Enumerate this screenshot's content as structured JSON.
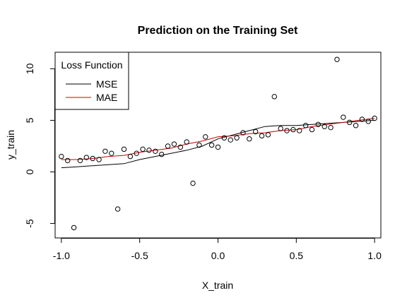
{
  "chart_data": {
    "type": "scatter",
    "title": "Prediction on the Training Set",
    "xlabel": "X_train",
    "ylabel": "y_train",
    "xlim": [
      -1.04,
      1.04
    ],
    "ylim": [
      -6.4,
      11.6
    ],
    "xticks": [
      -1.0,
      -0.5,
      0.0,
      0.5,
      1.0
    ],
    "xtick_labels": [
      "-1.0",
      "-0.5",
      "0.0",
      "0.5",
      "1.0"
    ],
    "yticks": [
      -5,
      0,
      5,
      10
    ],
    "ytick_labels": [
      "-5",
      "0",
      "5",
      "10"
    ],
    "grid": false,
    "legend": {
      "title": "Loss Function",
      "placement": "top-left",
      "entries": [
        {
          "label": "MSE",
          "color": "#000000"
        },
        {
          "label": "MAE",
          "color": "#cc0000"
        }
      ]
    },
    "points": {
      "x": [
        -1.0,
        -0.96,
        -0.92,
        -0.88,
        -0.84,
        -0.8,
        -0.76,
        -0.72,
        -0.68,
        -0.64,
        -0.6,
        -0.56,
        -0.52,
        -0.48,
        -0.44,
        -0.4,
        -0.36,
        -0.32,
        -0.28,
        -0.24,
        -0.2,
        -0.16,
        -0.12,
        -0.08,
        -0.04,
        0.0,
        0.04,
        0.08,
        0.12,
        0.16,
        0.2,
        0.24,
        0.28,
        0.32,
        0.36,
        0.4,
        0.44,
        0.48,
        0.52,
        0.56,
        0.6,
        0.64,
        0.68,
        0.72,
        0.76,
        0.8,
        0.84,
        0.88,
        0.92,
        0.96,
        1.0
      ],
      "y": [
        1.5,
        1.1,
        -5.4,
        1.1,
        1.4,
        1.3,
        1.2,
        2.0,
        1.8,
        -3.6,
        2.2,
        1.5,
        1.8,
        2.2,
        2.1,
        2.0,
        1.7,
        2.5,
        2.7,
        2.4,
        2.9,
        -1.1,
        2.6,
        3.4,
        2.6,
        2.4,
        3.3,
        3.1,
        3.3,
        3.8,
        3.2,
        3.9,
        3.5,
        3.6,
        7.3,
        4.2,
        4.0,
        4.1,
        4.0,
        4.5,
        4.1,
        4.6,
        4.4,
        4.3,
        10.9,
        5.3,
        4.8,
        4.5,
        5.1,
        4.9,
        5.2
      ]
    },
    "series": [
      {
        "name": "MSE",
        "color": "#000000",
        "x": [
          -1.0,
          -0.9,
          -0.8,
          -0.7,
          -0.6,
          -0.5,
          -0.4,
          -0.3,
          -0.2,
          -0.1,
          0.0,
          0.1,
          0.2,
          0.3,
          0.4,
          0.5,
          0.6,
          0.7,
          0.8,
          0.9,
          1.0
        ],
        "y": [
          0.4,
          0.5,
          0.6,
          0.7,
          0.8,
          1.2,
          1.5,
          1.8,
          2.1,
          2.5,
          3.2,
          3.6,
          4.0,
          4.4,
          4.5,
          4.5,
          4.6,
          4.7,
          4.8,
          4.9,
          5.0
        ]
      },
      {
        "name": "MAE",
        "color": "#cc0000",
        "x": [
          -1.0,
          -0.9,
          -0.8,
          -0.7,
          -0.6,
          -0.5,
          -0.4,
          -0.3,
          -0.2,
          -0.1,
          0.0,
          0.1,
          0.2,
          0.3,
          0.4,
          0.5,
          0.6,
          0.7,
          0.8,
          0.9,
          1.0
        ],
        "y": [
          1.2,
          1.2,
          1.3,
          1.5,
          1.6,
          1.9,
          2.1,
          2.3,
          2.7,
          3.0,
          3.4,
          3.5,
          3.7,
          3.8,
          4.0,
          4.1,
          4.4,
          4.6,
          4.8,
          5.0,
          5.2
        ]
      }
    ]
  }
}
